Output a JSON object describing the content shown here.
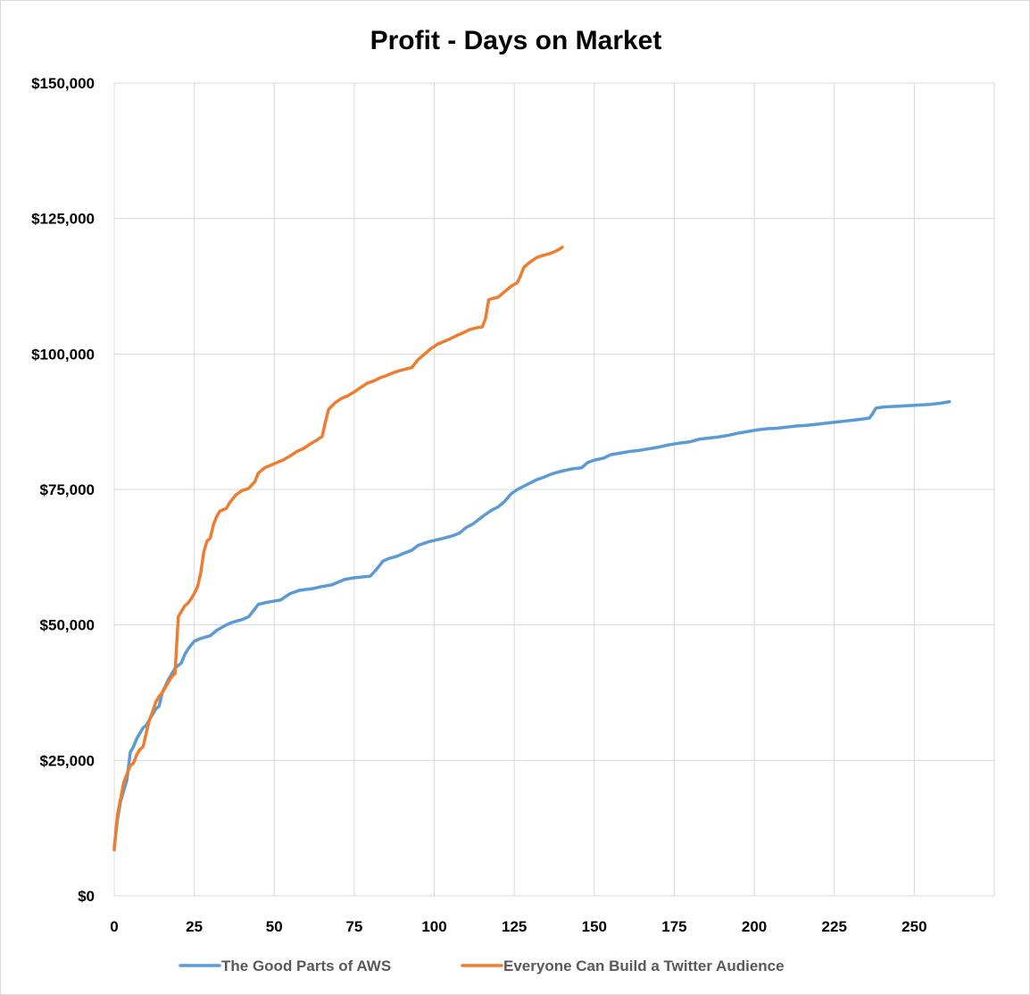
{
  "chart_data": {
    "type": "line",
    "title": "Profit - Days on Market",
    "xlabel": "",
    "ylabel": "",
    "xlim": [
      0,
      275
    ],
    "ylim": [
      0,
      150000
    ],
    "x_ticks": [
      0,
      25,
      50,
      75,
      100,
      125,
      150,
      175,
      200,
      225,
      250
    ],
    "x_tick_labels": [
      "0",
      "25",
      "50",
      "75",
      "100",
      "125",
      "150",
      "175",
      "200",
      "225",
      "250"
    ],
    "y_ticks": [
      0,
      25000,
      50000,
      75000,
      100000,
      125000,
      150000
    ],
    "y_tick_labels": [
      "$0",
      "$25,000",
      "$50,000",
      "$75,000",
      "$100,000",
      "$125,000",
      "$150,000"
    ],
    "grid": true,
    "legend_position": "bottom",
    "series": [
      {
        "name": "The Good Parts of AWS",
        "color": "#5b9bd5",
        "points": [
          [
            0,
            9000
          ],
          [
            1,
            14000
          ],
          [
            2,
            17500
          ],
          [
            3,
            19500
          ],
          [
            4,
            21500
          ],
          [
            5,
            26500
          ],
          [
            6,
            27500
          ],
          [
            7,
            29000
          ],
          [
            8,
            30000
          ],
          [
            9,
            31000
          ],
          [
            10,
            31500
          ],
          [
            11,
            32500
          ],
          [
            12,
            33500
          ],
          [
            13,
            34500
          ],
          [
            14,
            35000
          ],
          [
            15,
            37500
          ],
          [
            17,
            40000
          ],
          [
            19,
            42000
          ],
          [
            21,
            43000
          ],
          [
            22,
            44500
          ],
          [
            23,
            45500
          ],
          [
            25,
            47000
          ],
          [
            27,
            47500
          ],
          [
            30,
            48000
          ],
          [
            32,
            49000
          ],
          [
            35,
            50000
          ],
          [
            37,
            50500
          ],
          [
            40,
            51000
          ],
          [
            42,
            51500
          ],
          [
            44,
            53000
          ],
          [
            45,
            53800
          ],
          [
            48,
            54200
          ],
          [
            52,
            54600
          ],
          [
            55,
            55800
          ],
          [
            58,
            56400
          ],
          [
            62,
            56700
          ],
          [
            65,
            57100
          ],
          [
            68,
            57400
          ],
          [
            70,
            57900
          ],
          [
            72,
            58400
          ],
          [
            75,
            58700
          ],
          [
            80,
            59000
          ],
          [
            82,
            60300
          ],
          [
            84,
            61800
          ],
          [
            86,
            62300
          ],
          [
            88,
            62600
          ],
          [
            90,
            63100
          ],
          [
            93,
            63800
          ],
          [
            95,
            64700
          ],
          [
            98,
            65300
          ],
          [
            100,
            65600
          ],
          [
            103,
            66000
          ],
          [
            106,
            66500
          ],
          [
            108,
            67000
          ],
          [
            110,
            68000
          ],
          [
            112,
            68600
          ],
          [
            114,
            69500
          ],
          [
            116,
            70400
          ],
          [
            118,
            71200
          ],
          [
            120,
            71800
          ],
          [
            122,
            72800
          ],
          [
            124,
            74200
          ],
          [
            126,
            75000
          ],
          [
            128,
            75600
          ],
          [
            130,
            76200
          ],
          [
            132,
            76800
          ],
          [
            134,
            77200
          ],
          [
            136,
            77700
          ],
          [
            138,
            78100
          ],
          [
            140,
            78400
          ],
          [
            143,
            78800
          ],
          [
            146,
            79000
          ],
          [
            148,
            80000
          ],
          [
            150,
            80400
          ],
          [
            153,
            80800
          ],
          [
            155,
            81400
          ],
          [
            158,
            81700
          ],
          [
            161,
            82000
          ],
          [
            164,
            82200
          ],
          [
            167,
            82500
          ],
          [
            170,
            82800
          ],
          [
            173,
            83200
          ],
          [
            176,
            83500
          ],
          [
            180,
            83800
          ],
          [
            183,
            84300
          ],
          [
            186,
            84500
          ],
          [
            189,
            84700
          ],
          [
            192,
            85000
          ],
          [
            195,
            85400
          ],
          [
            198,
            85700
          ],
          [
            201,
            86000
          ],
          [
            204,
            86200
          ],
          [
            207,
            86300
          ],
          [
            210,
            86500
          ],
          [
            213,
            86700
          ],
          [
            216,
            86800
          ],
          [
            219,
            87000
          ],
          [
            222,
            87200
          ],
          [
            225,
            87400
          ],
          [
            228,
            87600
          ],
          [
            231,
            87800
          ],
          [
            234,
            88000
          ],
          [
            236,
            88200
          ],
          [
            237,
            89000
          ],
          [
            238,
            90000
          ],
          [
            240,
            90200
          ],
          [
            243,
            90300
          ],
          [
            246,
            90400
          ],
          [
            249,
            90500
          ],
          [
            252,
            90600
          ],
          [
            255,
            90700
          ],
          [
            258,
            90900
          ],
          [
            261,
            91200
          ]
        ]
      },
      {
        "name": "Everyone Can Build a Twitter Audience",
        "color": "#ed7d31",
        "points": [
          [
            0,
            8500
          ],
          [
            1,
            15000
          ],
          [
            2,
            18000
          ],
          [
            3,
            21000
          ],
          [
            4,
            22500
          ],
          [
            5,
            24000
          ],
          [
            6,
            24500
          ],
          [
            7,
            26000
          ],
          [
            8,
            27000
          ],
          [
            9,
            27500
          ],
          [
            10,
            30000
          ],
          [
            11,
            32500
          ],
          [
            12,
            34000
          ],
          [
            13,
            35800
          ],
          [
            14,
            36800
          ],
          [
            15,
            37500
          ],
          [
            16,
            38500
          ],
          [
            17,
            39500
          ],
          [
            18,
            40500
          ],
          [
            19,
            41000
          ],
          [
            20,
            51500
          ],
          [
            21,
            52500
          ],
          [
            22,
            53500
          ],
          [
            23,
            54000
          ],
          [
            24,
            54800
          ],
          [
            25,
            55800
          ],
          [
            26,
            57000
          ],
          [
            27,
            59500
          ],
          [
            28,
            63500
          ],
          [
            29,
            65500
          ],
          [
            30,
            66000
          ],
          [
            31,
            68500
          ],
          [
            32,
            70000
          ],
          [
            33,
            71000
          ],
          [
            35,
            71500
          ],
          [
            36,
            72500
          ],
          [
            38,
            74000
          ],
          [
            40,
            74800
          ],
          [
            42,
            75200
          ],
          [
            44,
            76500
          ],
          [
            45,
            78000
          ],
          [
            47,
            79000
          ],
          [
            49,
            79500
          ],
          [
            51,
            80000
          ],
          [
            53,
            80500
          ],
          [
            55,
            81200
          ],
          [
            57,
            82000
          ],
          [
            59,
            82500
          ],
          [
            61,
            83300
          ],
          [
            63,
            84000
          ],
          [
            65,
            84800
          ],
          [
            66,
            87500
          ],
          [
            67,
            89800
          ],
          [
            69,
            91000
          ],
          [
            71,
            91800
          ],
          [
            73,
            92300
          ],
          [
            75,
            93000
          ],
          [
            77,
            93800
          ],
          [
            79,
            94600
          ],
          [
            81,
            95000
          ],
          [
            83,
            95600
          ],
          [
            85,
            96000
          ],
          [
            87,
            96500
          ],
          [
            89,
            96900
          ],
          [
            91,
            97200
          ],
          [
            93,
            97500
          ],
          [
            95,
            99000
          ],
          [
            97,
            100000
          ],
          [
            99,
            101000
          ],
          [
            101,
            101800
          ],
          [
            103,
            102300
          ],
          [
            105,
            102800
          ],
          [
            107,
            103400
          ],
          [
            109,
            103900
          ],
          [
            111,
            104500
          ],
          [
            113,
            104800
          ],
          [
            115,
            105000
          ],
          [
            116,
            106500
          ],
          [
            117,
            110000
          ],
          [
            118,
            110200
          ],
          [
            120,
            110500
          ],
          [
            122,
            111500
          ],
          [
            124,
            112500
          ],
          [
            126,
            113200
          ],
          [
            127,
            114500
          ],
          [
            128,
            116000
          ],
          [
            130,
            117000
          ],
          [
            132,
            117800
          ],
          [
            134,
            118200
          ],
          [
            136,
            118500
          ],
          [
            138,
            119000
          ],
          [
            139,
            119300
          ],
          [
            140,
            119700
          ]
        ]
      }
    ]
  }
}
